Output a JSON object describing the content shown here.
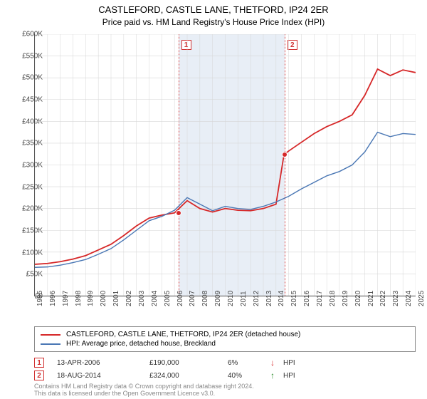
{
  "title": {
    "main": "CASTLEFORD, CASTLE LANE, THETFORD, IP24 2ER",
    "sub": "Price paid vs. HM Land Registry's House Price Index (HPI)",
    "fontsize_main": 13,
    "fontsize_sub": 12
  },
  "chart": {
    "type": "line",
    "background": "#ffffff",
    "shaded_band_color": "#e8eef6",
    "grid_color": "#d6d6d6",
    "axis_color": "#555555",
    "x": {
      "label_fontsize": 10,
      "years": [
        1995,
        1996,
        1997,
        1998,
        1999,
        2000,
        2001,
        2002,
        2003,
        2004,
        2005,
        2006,
        2007,
        2008,
        2009,
        2010,
        2011,
        2012,
        2013,
        2014,
        2015,
        2016,
        2017,
        2018,
        2019,
        2020,
        2021,
        2022,
        2023,
        2024,
        2025
      ],
      "min_year": 1995,
      "max_year": 2025
    },
    "y": {
      "label_fontsize": 10,
      "min": 0,
      "max": 600000,
      "tick_step": 50000,
      "tick_labels": [
        "£0",
        "£50K",
        "£100K",
        "£150K",
        "£200K",
        "£250K",
        "£300K",
        "£350K",
        "£400K",
        "£450K",
        "£500K",
        "£550K",
        "£600K"
      ]
    },
    "series": [
      {
        "name": "CASTLEFORD, CASTLE LANE, THETFORD, IP24 2ER (detached house)",
        "color": "#d62728",
        "width": 1.8,
        "data": [
          [
            1995,
            72000
          ],
          [
            1996,
            74000
          ],
          [
            1997,
            78000
          ],
          [
            1998,
            84000
          ],
          [
            1999,
            92000
          ],
          [
            2000,
            105000
          ],
          [
            2001,
            118000
          ],
          [
            2002,
            138000
          ],
          [
            2003,
            160000
          ],
          [
            2004,
            178000
          ],
          [
            2005,
            185000
          ],
          [
            2006,
            190000
          ],
          [
            2007,
            218000
          ],
          [
            2008,
            200000
          ],
          [
            2009,
            192000
          ],
          [
            2010,
            200000
          ],
          [
            2011,
            196000
          ],
          [
            2012,
            195000
          ],
          [
            2013,
            200000
          ],
          [
            2014,
            210000
          ],
          [
            2014.63,
            324000
          ],
          [
            2015,
            332000
          ],
          [
            2016,
            352000
          ],
          [
            2017,
            372000
          ],
          [
            2018,
            388000
          ],
          [
            2019,
            400000
          ],
          [
            2020,
            415000
          ],
          [
            2021,
            460000
          ],
          [
            2022,
            520000
          ],
          [
            2023,
            505000
          ],
          [
            2024,
            518000
          ],
          [
            2025,
            512000
          ]
        ]
      },
      {
        "name": "HPI: Average price, detached house, Breckland",
        "color": "#4a77b4",
        "width": 1.4,
        "data": [
          [
            1995,
            65000
          ],
          [
            1996,
            66000
          ],
          [
            1997,
            70000
          ],
          [
            1998,
            76000
          ],
          [
            1999,
            83000
          ],
          [
            2000,
            95000
          ],
          [
            2001,
            108000
          ],
          [
            2002,
            128000
          ],
          [
            2003,
            150000
          ],
          [
            2004,
            172000
          ],
          [
            2005,
            182000
          ],
          [
            2006,
            196000
          ],
          [
            2007,
            225000
          ],
          [
            2008,
            210000
          ],
          [
            2009,
            195000
          ],
          [
            2010,
            205000
          ],
          [
            2011,
            200000
          ],
          [
            2012,
            198000
          ],
          [
            2013,
            205000
          ],
          [
            2014,
            215000
          ],
          [
            2015,
            228000
          ],
          [
            2016,
            245000
          ],
          [
            2017,
            260000
          ],
          [
            2018,
            275000
          ],
          [
            2019,
            285000
          ],
          [
            2020,
            300000
          ],
          [
            2021,
            330000
          ],
          [
            2022,
            375000
          ],
          [
            2023,
            365000
          ],
          [
            2024,
            372000
          ],
          [
            2025,
            370000
          ]
        ]
      }
    ],
    "shaded_band": {
      "from_year": 2006.28,
      "to_year": 2014.63
    },
    "event_lines": [
      {
        "id": "1",
        "year": 2006.28,
        "marker_color": "#d62728"
      },
      {
        "id": "2",
        "year": 2014.63,
        "marker_color": "#d62728"
      }
    ],
    "markers": [
      {
        "year": 2006.28,
        "value": 190000,
        "color": "#d62728"
      },
      {
        "year": 2014.63,
        "value": 324000,
        "color": "#d62728"
      }
    ]
  },
  "legend": {
    "items": [
      {
        "color": "#d62728",
        "label": "CASTLEFORD, CASTLE LANE, THETFORD, IP24 2ER (detached house)"
      },
      {
        "color": "#4a77b4",
        "label": "HPI: Average price, detached house, Breckland"
      }
    ]
  },
  "events": [
    {
      "num": "1",
      "date": "13-APR-2006",
      "price": "£190,000",
      "pct": "6%",
      "arrow": "↓",
      "arrow_color": "#d62728",
      "ref": "HPI"
    },
    {
      "num": "2",
      "date": "18-AUG-2014",
      "price": "£324,000",
      "pct": "40%",
      "arrow": "↑",
      "arrow_color": "#2a8a2a",
      "ref": "HPI"
    }
  ],
  "footnote": {
    "line1": "Contains HM Land Registry data © Crown copyright and database right 2024.",
    "line2": "This data is licensed under the Open Government Licence v3.0."
  }
}
